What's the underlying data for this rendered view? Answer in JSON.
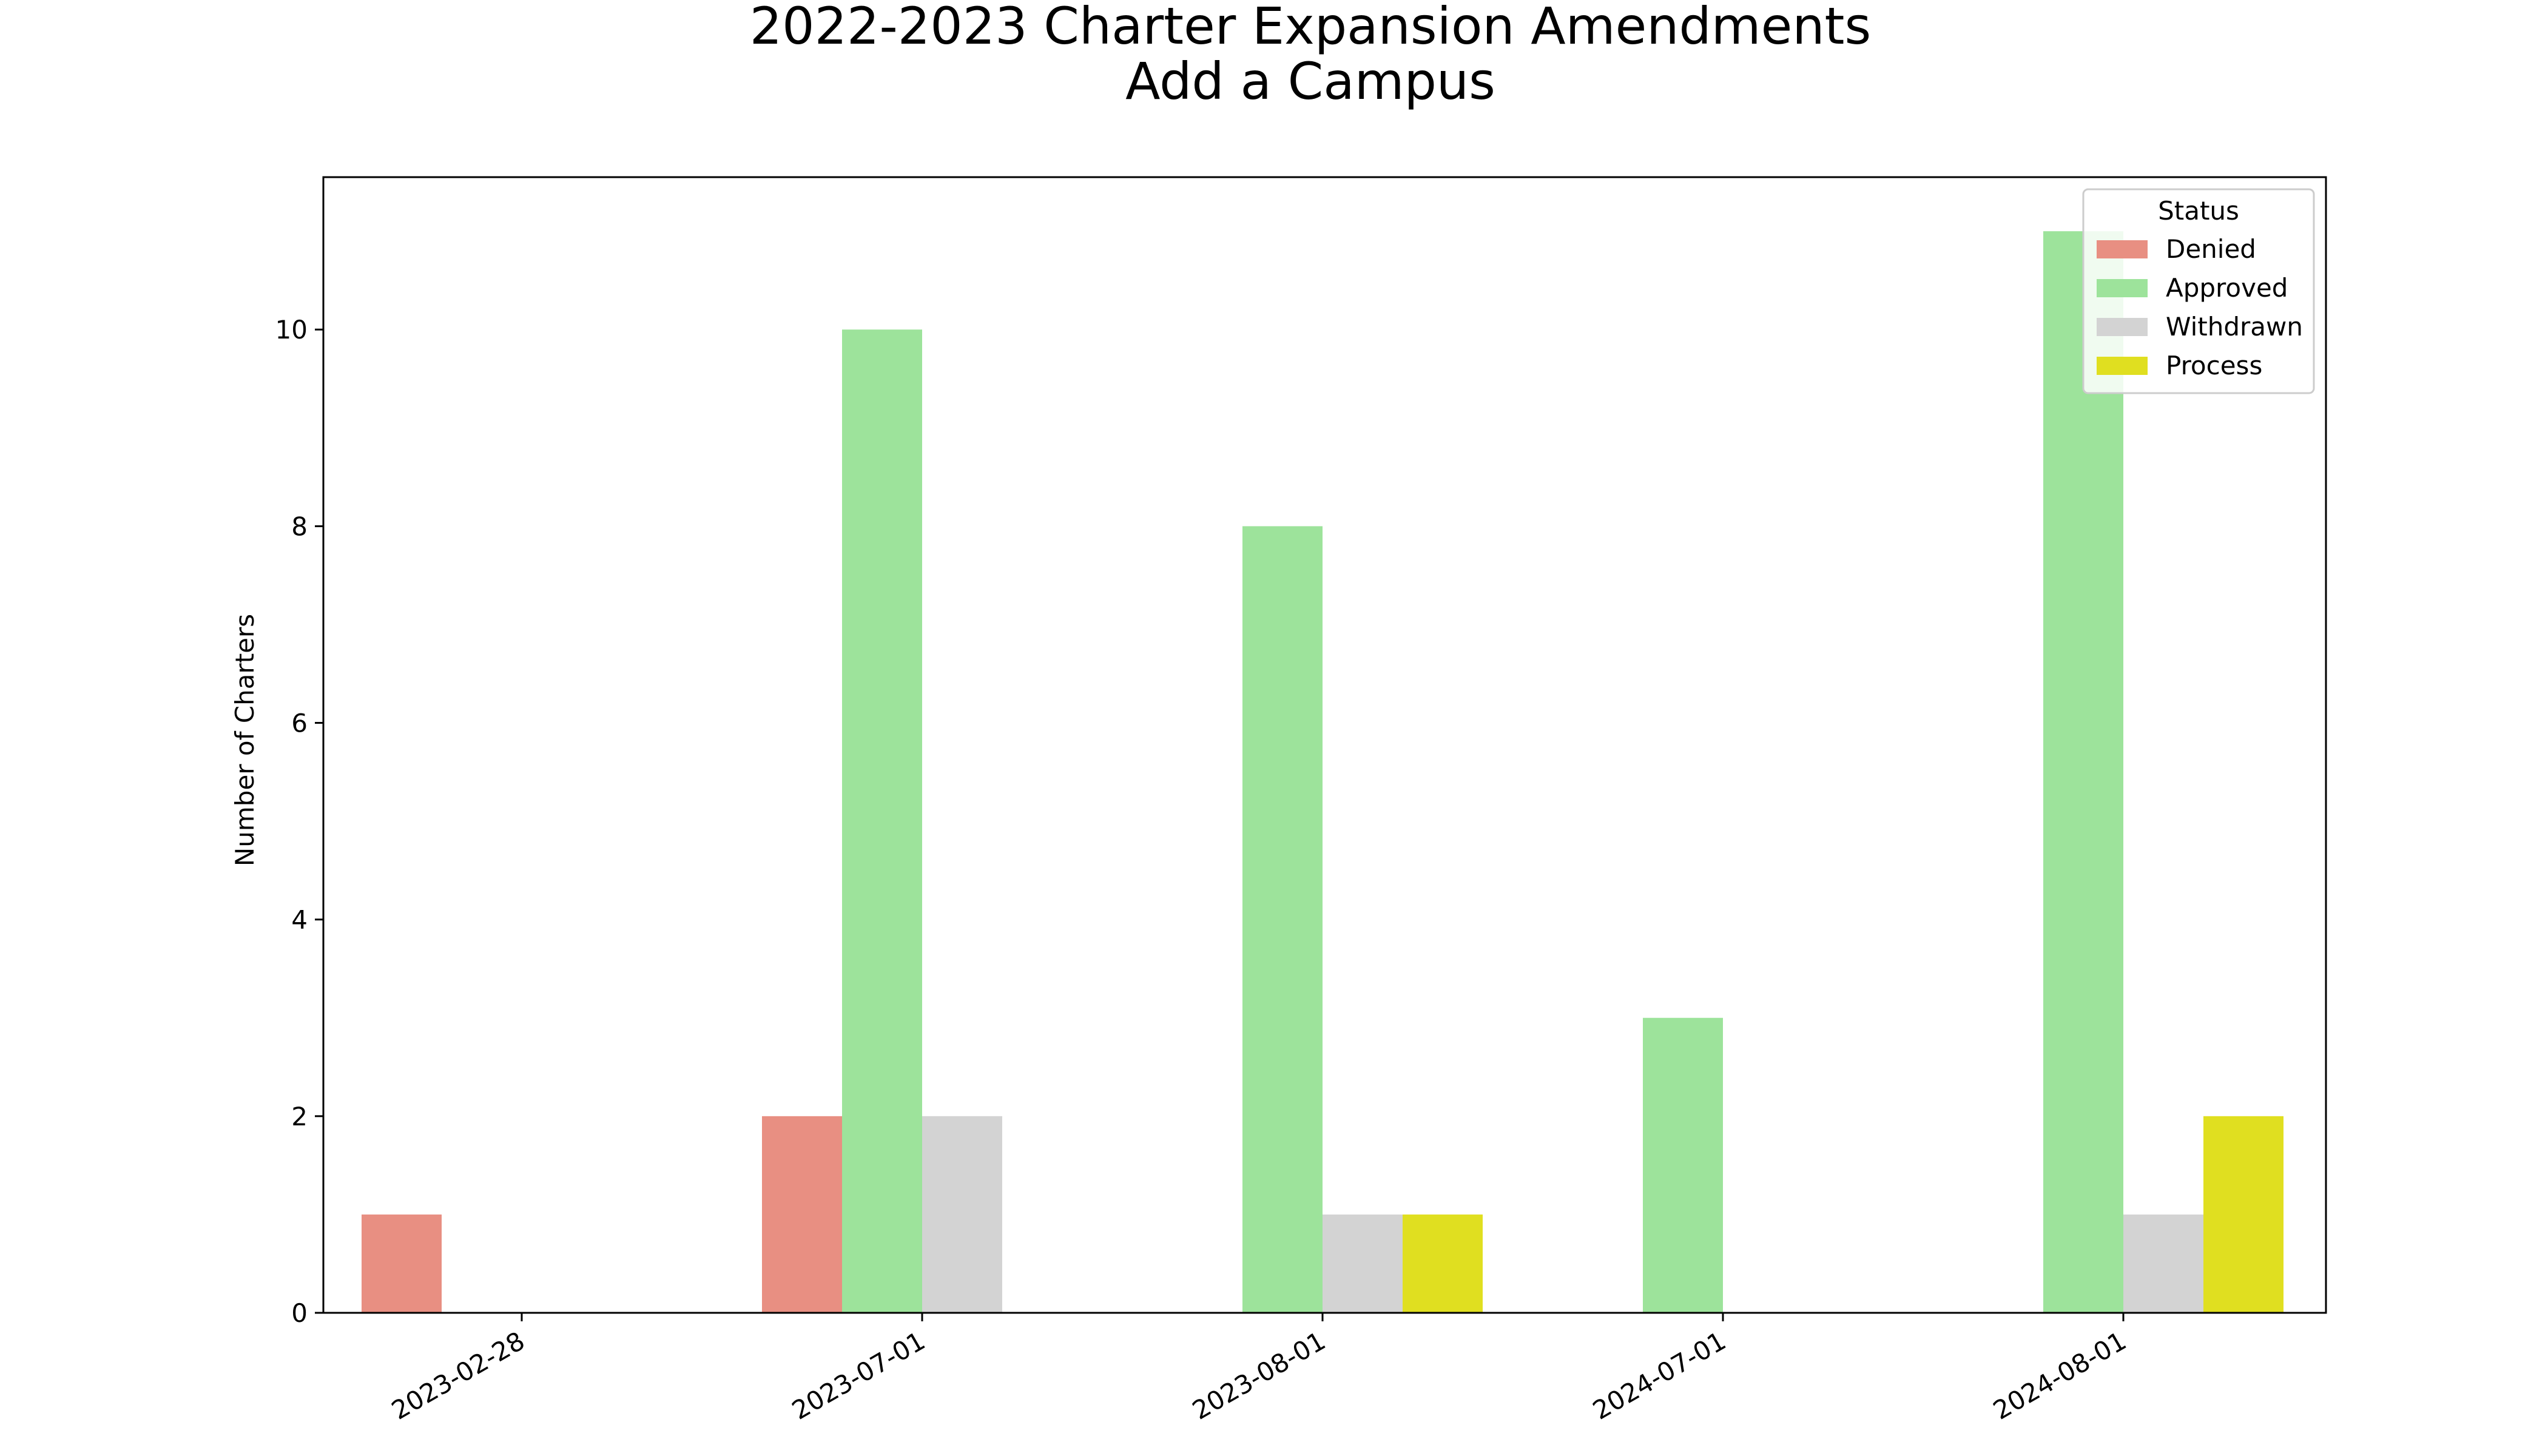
{
  "chart_data": {
    "type": "bar",
    "title": "2022-2023 Charter Expansion Amendments",
    "subtitle": "Add a Campus",
    "xlabel": "",
    "ylabel": "Number of Charters",
    "categories": [
      "2023-02-28",
      "2023-07-01",
      "2023-08-01",
      "2024-07-01",
      "2024-08-01"
    ],
    "series": [
      {
        "name": "Denied",
        "color": "#e88f82",
        "values": [
          1,
          2,
          0,
          0,
          0
        ]
      },
      {
        "name": "Approved",
        "color": "#9de39b",
        "values": [
          0,
          10,
          8,
          3,
          11
        ]
      },
      {
        "name": "Withdrawn",
        "color": "#d3d3d3",
        "values": [
          0,
          2,
          1,
          0,
          1
        ]
      },
      {
        "name": "Process",
        "color": "#e0df20",
        "values": [
          0,
          0,
          1,
          0,
          2
        ]
      }
    ],
    "ylim": [
      0,
      11.55
    ],
    "yticks": [
      0,
      2,
      4,
      6,
      8,
      10
    ],
    "grid": false,
    "legend": {
      "title": "Status",
      "position": "top-right"
    }
  }
}
